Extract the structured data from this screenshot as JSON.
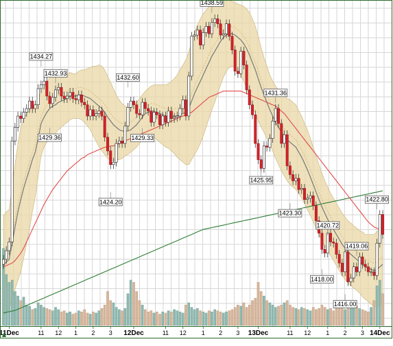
{
  "chart_data": {
    "type": "candlestick",
    "price_range": [
      1413.5,
      1439.5
    ],
    "volume_band": "bottom",
    "grid": true,
    "x_axis": {
      "ticks": [
        {
          "label": "11Dec",
          "bold": true,
          "bar": 2
        },
        {
          "label": "11",
          "bold": false,
          "bar": 13
        },
        {
          "label": "12",
          "bold": false,
          "bar": 19
        },
        {
          "label": "1",
          "bold": false,
          "bar": 25
        },
        {
          "label": "2",
          "bold": false,
          "bar": 31
        },
        {
          "label": "3",
          "bold": false,
          "bar": 37
        },
        {
          "label": "12Dec",
          "bold": true,
          "bar": 45
        },
        {
          "label": "11",
          "bold": false,
          "bar": 56
        },
        {
          "label": "12",
          "bold": false,
          "bar": 62
        },
        {
          "label": "1",
          "bold": false,
          "bar": 69
        },
        {
          "label": "2",
          "bold": false,
          "bar": 75
        },
        {
          "label": "3",
          "bold": false,
          "bar": 81
        },
        {
          "label": "13Dec",
          "bold": true,
          "bar": 88
        },
        {
          "label": "11",
          "bold": false,
          "bar": 99
        },
        {
          "label": "12",
          "bold": false,
          "bar": 105
        },
        {
          "label": "1",
          "bold": false,
          "bar": 112
        },
        {
          "label": "2",
          "bold": false,
          "bar": 118
        },
        {
          "label": "3",
          "bold": false,
          "bar": 124
        },
        {
          "label": "14Dec",
          "bold": true,
          "bar": 130
        }
      ]
    },
    "annotations": [
      {
        "label": "1434.27",
        "bar": 13,
        "price": 1434.27,
        "pos": "above"
      },
      {
        "label": "1432.93",
        "bar": 18,
        "price": 1432.93,
        "pos": "above"
      },
      {
        "label": "1429.36",
        "bar": 16,
        "price": 1429.36,
        "pos": "below"
      },
      {
        "label": "1424.20",
        "bar": 37,
        "price": 1424.2,
        "pos": "below"
      },
      {
        "label": "1432.60",
        "bar": 43,
        "price": 1432.6,
        "pos": "above"
      },
      {
        "label": "1429.33",
        "bar": 48,
        "price": 1429.33,
        "pos": "below"
      },
      {
        "label": "1438.59",
        "bar": 72,
        "price": 1438.59,
        "pos": "above"
      },
      {
        "label": "1431.36",
        "bar": 94,
        "price": 1431.36,
        "pos": "above"
      },
      {
        "label": "1425.95",
        "bar": 89,
        "price": 1425.95,
        "pos": "below"
      },
      {
        "label": "1423.30",
        "bar": 99,
        "price": 1423.3,
        "pos": "below"
      },
      {
        "label": "1420.72",
        "bar": 112,
        "price": 1420.72,
        "pos": "above"
      },
      {
        "label": "1418.00",
        "bar": 110,
        "price": 1418.0,
        "pos": "below"
      },
      {
        "label": "1419.06",
        "bar": 122,
        "price": 1419.06,
        "pos": "above"
      },
      {
        "label": "1416.00",
        "bar": 118,
        "price": 1416.0,
        "pos": "below"
      },
      {
        "label": "1422.80",
        "bar": 129,
        "price": 1422.8,
        "pos": "above"
      }
    ],
    "close": [
      1418.8,
      1419.5,
      1420.2,
      1428.3,
      1429.4,
      1430.3,
      1430.1,
      1430.6,
      1430.9,
      1431.5,
      1430.9,
      1431.2,
      1432.5,
      1432.8,
      1433.1,
      1431.9,
      1431.3,
      1431.8,
      1432.4,
      1432.6,
      1431.9,
      1431.7,
      1431.9,
      1432.2,
      1431.7,
      1431.6,
      1432.0,
      1431.4,
      1431.2,
      1430.3,
      1430.8,
      1430.3,
      1430.5,
      1430.7,
      1430.3,
      1428.6,
      1427.5,
      1426.4,
      1426.6,
      1428.1,
      1428.3,
      1428.1,
      1429.5,
      1431.0,
      1431.5,
      1431.2,
      1430.5,
      1430.4,
      1431.4,
      1430.9,
      1430.7,
      1429.8,
      1430.6,
      1430.4,
      1429.6,
      1430.3,
      1429.8,
      1430.7,
      1430.1,
      1430.2,
      1430.3,
      1430.9,
      1431.6,
      1430.3,
      1433.5,
      1436.7,
      1436.8,
      1437.2,
      1436.0,
      1437.0,
      1437.5,
      1436.9,
      1437.8,
      1438.1,
      1437.7,
      1436.8,
      1436.9,
      1437.7,
      1436.7,
      1435.6,
      1433.9,
      1433.7,
      1435.5,
      1434.4,
      1432.4,
      1431.2,
      1430.4,
      1428.1,
      1426.8,
      1426.1,
      1427.9,
      1427.8,
      1428.5,
      1429.9,
      1430.9,
      1429.7,
      1428.1,
      1428.8,
      1426.3,
      1425.6,
      1425.1,
      1425.3,
      1424.4,
      1424.5,
      1423.6,
      1423.7,
      1423.9,
      1423.1,
      1421.9,
      1420.9,
      1419.6,
      1419.3,
      1420.9,
      1420.2,
      1420.1,
      1419.2,
      1418.5,
      1417.8,
      1419.4,
      1417.0,
      1417.3,
      1418.2,
      1417.8,
      1419.0,
      1418.4,
      1418.2,
      1417.8,
      1417.8,
      1417.5,
      1420.1,
      1422.4,
      1420.8
    ],
    "sma_short": [
      1418.3,
      1418.6,
      1418.8,
      1420.1,
      1421.4,
      1422.6,
      1423.6,
      1424.5,
      1425.3,
      1426.0,
      1426.8,
      1427.4,
      1428.5,
      1429.7,
      1430.2,
      1430.6,
      1430.9,
      1431.1,
      1431.2,
      1431.4,
      1431.5,
      1431.6,
      1431.7,
      1431.9,
      1431.9,
      1431.9,
      1432.0,
      1432.0,
      1431.9,
      1431.8,
      1431.7,
      1431.5,
      1431.3,
      1431.1,
      1430.9,
      1430.6,
      1430.2,
      1429.9,
      1429.6,
      1429.4,
      1429.2,
      1429.1,
      1429.1,
      1429.1,
      1429.2,
      1429.4,
      1429.6,
      1429.9,
      1430.2,
      1430.5,
      1430.6,
      1430.7,
      1430.7,
      1430.6,
      1430.5,
      1430.4,
      1430.3,
      1430.3,
      1430.3,
      1430.3,
      1430.3,
      1430.4,
      1430.5,
      1430.6,
      1430.9,
      1431.5,
      1432.1,
      1432.6,
      1433.1,
      1433.6,
      1434.1,
      1434.6,
      1435.1,
      1435.5,
      1435.9,
      1436.3,
      1436.6,
      1436.8,
      1436.9,
      1436.9,
      1436.8,
      1436.6,
      1436.4,
      1436.1,
      1435.7,
      1435.2,
      1434.6,
      1434.0,
      1433.3,
      1432.6,
      1432.0,
      1431.4,
      1430.8,
      1430.3,
      1429.8,
      1429.4,
      1429.0,
      1428.7,
      1428.4,
      1428.2,
      1428.0,
      1427.8,
      1427.4,
      1427.0,
      1426.5,
      1426.0,
      1425.4,
      1424.8,
      1424.2,
      1423.6,
      1423.0,
      1422.5,
      1422.0,
      1421.6,
      1421.2,
      1420.8,
      1420.4,
      1420.0,
      1419.7,
      1419.4,
      1419.2,
      1419.0,
      1418.8,
      1418.6,
      1418.4,
      1418.2,
      1418.1,
      1418.0,
      1417.9,
      1418.0,
      1418.2,
      1418.4
    ],
    "sma_mid": [
      1418.2,
      1418.3,
      1418.4,
      1418.5,
      1418.7,
      1419.0,
      1419.3,
      1419.7,
      1420.2,
      1420.7,
      1421.2,
      1421.7,
      1422.2,
      1422.7,
      1423.2,
      1423.6,
      1424.0,
      1424.4,
      1424.7,
      1425.0,
      1425.3,
      1425.6,
      1425.9,
      1426.1,
      1426.3,
      1426.5,
      1426.7,
      1426.9,
      1427.0,
      1427.2,
      1427.3,
      1427.4,
      1427.5,
      1427.6,
      1427.7,
      1427.8,
      1427.8,
      1427.9,
      1427.9,
      1428.0,
      1428.1,
      1428.2,
      1428.3,
      1428.4,
      1428.5,
      1428.6,
      1428.7,
      1428.8,
      1428.9,
      1429.0,
      1429.1,
      1429.2,
      1429.3,
      1429.4,
      1429.5,
      1429.6,
      1429.7,
      1429.8,
      1429.9,
      1430.0,
      1430.1,
      1430.2,
      1430.3,
      1430.4,
      1430.5,
      1430.6,
      1430.8,
      1431.0,
      1431.2,
      1431.4,
      1431.6,
      1431.8,
      1431.9,
      1432.0,
      1432.1,
      1432.2,
      1432.3,
      1432.3,
      1432.3,
      1432.3,
      1432.3,
      1432.3,
      1432.3,
      1432.2,
      1432.1,
      1432.0,
      1431.9,
      1431.8,
      1431.7,
      1431.6,
      1431.5,
      1431.4,
      1431.3,
      1431.2,
      1431.1,
      1430.9,
      1430.7,
      1430.5,
      1430.2,
      1429.9,
      1429.6,
      1429.3,
      1429.0,
      1428.7,
      1428.4,
      1428.1,
      1427.8,
      1427.5,
      1427.2,
      1426.9,
      1426.6,
      1426.3,
      1426.0,
      1425.7,
      1425.4,
      1425.1,
      1424.8,
      1424.5,
      1424.2,
      1423.9,
      1423.6,
      1423.3,
      1423.0,
      1422.7,
      1422.4,
      1422.1,
      1421.8,
      1421.6,
      1421.4,
      1421.3,
      1421.2,
      1421.1
    ],
    "sma_long": [
      1414.5,
      1414.55,
      1414.6,
      1414.65,
      1414.7,
      1414.8,
      1414.9,
      1415.0,
      1415.1,
      1415.2,
      1415.3,
      1415.4,
      1415.5,
      1415.6,
      1415.7,
      1415.8,
      1415.9,
      1416.0,
      1416.1,
      1416.2,
      1416.3,
      1416.4,
      1416.5,
      1416.6,
      1416.7,
      1416.8,
      1416.9,
      1417.0,
      1417.1,
      1417.2,
      1417.3,
      1417.4,
      1417.5,
      1417.6,
      1417.7,
      1417.8,
      1417.9,
      1418.0,
      1418.1,
      1418.2,
      1418.3,
      1418.4,
      1418.5,
      1418.6,
      1418.7,
      1418.8,
      1418.9,
      1419.0,
      1419.1,
      1419.2,
      1419.3,
      1419.4,
      1419.5,
      1419.6,
      1419.7,
      1419.8,
      1419.9,
      1420.0,
      1420.1,
      1420.2,
      1420.3,
      1420.4,
      1420.5,
      1420.6,
      1420.7,
      1420.8,
      1420.9,
      1421.0,
      1421.1,
      1421.2,
      1421.25,
      1421.3,
      1421.35,
      1421.4,
      1421.45,
      1421.5,
      1421.55,
      1421.6,
      1421.65,
      1421.7,
      1421.75,
      1421.8,
      1421.85,
      1421.9,
      1421.95,
      1422.0,
      1422.05,
      1422.1,
      1422.15,
      1422.2,
      1422.25,
      1422.3,
      1422.35,
      1422.4,
      1422.45,
      1422.5,
      1422.55,
      1422.6,
      1422.65,
      1422.7,
      1422.75,
      1422.8,
      1422.85,
      1422.9,
      1422.95,
      1423.0,
      1423.05,
      1423.1,
      1423.15,
      1423.2,
      1423.25,
      1423.3,
      1423.35,
      1423.4,
      1423.45,
      1423.5,
      1423.55,
      1423.6,
      1423.65,
      1423.7,
      1423.75,
      1423.8,
      1423.85,
      1423.9,
      1423.95,
      1424.0,
      1424.05,
      1424.1,
      1424.15,
      1424.2,
      1424.25,
      1424.3
    ],
    "band_width": [
      4.0,
      4.0,
      4.0,
      4.5,
      5.0,
      5.5,
      5.8,
      5.6,
      5.2,
      4.8,
      4.2,
      3.6,
      3.0,
      2.6,
      2.4,
      2.4,
      2.5,
      2.4,
      2.3,
      2.2,
      2.1,
      2.0,
      1.9,
      1.9,
      1.8,
      1.8,
      1.9,
      2.0,
      2.1,
      2.3,
      2.5,
      2.8,
      3.0,
      3.3,
      3.4,
      3.4,
      3.3,
      3.1,
      2.9,
      2.6,
      2.4,
      2.2,
      2.0,
      1.9,
      1.8,
      1.8,
      1.8,
      1.8,
      1.8,
      1.8,
      1.9,
      2.0,
      2.1,
      2.2,
      2.3,
      2.4,
      2.5,
      2.6,
      2.8,
      3.0,
      3.3,
      3.6,
      3.9,
      4.2,
      4.5,
      4.7,
      4.9,
      5.0,
      5.0,
      4.9,
      4.7,
      4.5,
      4.3,
      4.1,
      3.8,
      3.5,
      3.2,
      2.9,
      2.7,
      2.6,
      2.6,
      2.7,
      2.8,
      3.0,
      3.2,
      3.4,
      3.5,
      3.5,
      3.4,
      3.2,
      3.0,
      2.9,
      2.8,
      2.8,
      2.9,
      3.0,
      3.1,
      3.2,
      3.3,
      3.4,
      3.4,
      3.4,
      3.3,
      3.3,
      3.2,
      3.2,
      3.1,
      3.0,
      2.9,
      2.8,
      2.7,
      2.6,
      2.6,
      2.5,
      2.5,
      2.5,
      2.5,
      2.5,
      2.5,
      2.5,
      2.5,
      2.5,
      2.5,
      2.5,
      2.6,
      2.6,
      2.7,
      2.8,
      2.9,
      3.0,
      3.1,
      3.2
    ],
    "volume": [
      68,
      45,
      38,
      40,
      30,
      26,
      22,
      25,
      18,
      17,
      14,
      15,
      20,
      18,
      16,
      15,
      14,
      13,
      16,
      14,
      12,
      13,
      11,
      12,
      10,
      11,
      13,
      12,
      14,
      11,
      10,
      12,
      11,
      13,
      15,
      18,
      30,
      22,
      20,
      16,
      14,
      13,
      15,
      28,
      40,
      38,
      30,
      22,
      18,
      14,
      12,
      13,
      11,
      12,
      10,
      12,
      11,
      13,
      12,
      14,
      13,
      12,
      11,
      18,
      20,
      16,
      14,
      15,
      13,
      12,
      11,
      13,
      12,
      14,
      13,
      12,
      11,
      12,
      13,
      14,
      16,
      18,
      17,
      20,
      16,
      18,
      22,
      24,
      38,
      30,
      26,
      22,
      20,
      18,
      16,
      17,
      18,
      20,
      22,
      18,
      16,
      15,
      14,
      16,
      15,
      14,
      13,
      16,
      14,
      15,
      18,
      16,
      14,
      15,
      13,
      17,
      16,
      18,
      14,
      15,
      16,
      20,
      17,
      15,
      14,
      13,
      12,
      16,
      22,
      35,
      40,
      28
    ]
  }
}
